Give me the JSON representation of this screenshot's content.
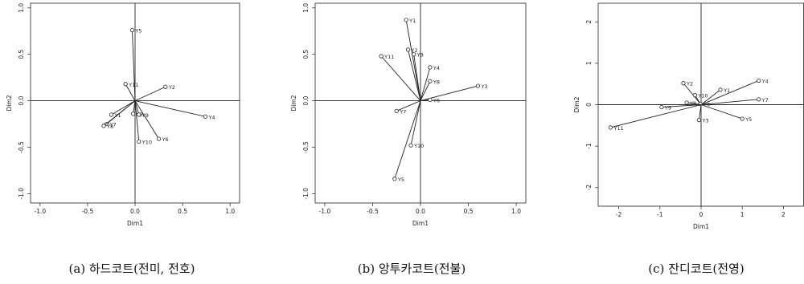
{
  "chart_data": [
    {
      "type": "scatter",
      "caption": "(a) 하드코트(전미, 전호)",
      "xlabel": "Dim1",
      "ylabel": "Dim2",
      "xlim": [
        -1.1,
        1.1
      ],
      "ylim": [
        -1.1,
        1.05
      ],
      "xticks": [
        -1.0,
        -0.5,
        0.0,
        0.5,
        1.0
      ],
      "yticks": [
        -1.0,
        -0.5,
        0.0,
        0.5,
        1.0
      ],
      "xtick_labels": [
        "-1.0",
        "-0.5",
        "0.0",
        "0.5",
        "1.0"
      ],
      "ytick_labels": [
        "-1.0",
        "-0.5",
        "0.0",
        "0.5",
        "1.0"
      ],
      "vectors": true,
      "points": [
        {
          "label": "Y5",
          "x": -0.03,
          "y": 0.76
        },
        {
          "label": "Y11",
          "x": -0.1,
          "y": 0.18
        },
        {
          "label": "Y2",
          "x": 0.32,
          "y": 0.15
        },
        {
          "label": "Y1",
          "x": -0.25,
          "y": -0.15
        },
        {
          "label": "Y3",
          "x": -0.02,
          "y": -0.14
        },
        {
          "label": "Y9",
          "x": 0.04,
          "y": -0.15
        },
        {
          "label": "Y7",
          "x": -0.3,
          "y": -0.25
        },
        {
          "label": "Y8",
          "x": -0.33,
          "y": -0.27
        },
        {
          "label": "Y10",
          "x": 0.04,
          "y": -0.44
        },
        {
          "label": "Y6",
          "x": 0.25,
          "y": -0.41
        },
        {
          "label": "Y4",
          "x": 0.74,
          "y": -0.17
        }
      ]
    },
    {
      "type": "scatter",
      "caption": "(b) 앙투카코트(전불)",
      "xlabel": "Dim1",
      "ylabel": "Dim2",
      "xlim": [
        -1.1,
        1.1
      ],
      "ylim": [
        -1.1,
        1.05
      ],
      "xticks": [
        -1.0,
        -0.5,
        0.0,
        0.5,
        1.0
      ],
      "yticks": [
        -1.0,
        -0.5,
        0.0,
        0.5,
        1.0
      ],
      "xtick_labels": [
        "-1.0",
        "-0.5",
        "0.0",
        "0.5",
        "1.0"
      ],
      "ytick_labels": [
        "-1.0",
        "-0.5",
        "0.0",
        "0.5",
        "1.0"
      ],
      "vectors": true,
      "points": [
        {
          "label": "Y1",
          "x": -0.15,
          "y": 0.87
        },
        {
          "label": "Y11",
          "x": -0.41,
          "y": 0.48
        },
        {
          "label": "Y2",
          "x": -0.13,
          "y": 0.55
        },
        {
          "label": "Y9",
          "x": -0.07,
          "y": 0.5
        },
        {
          "label": "Y4",
          "x": 0.1,
          "y": 0.36
        },
        {
          "label": "Y8",
          "x": 0.1,
          "y": 0.21
        },
        {
          "label": "Y3",
          "x": 0.6,
          "y": 0.16
        },
        {
          "label": "Y6",
          "x": 0.1,
          "y": 0.01
        },
        {
          "label": "Y7",
          "x": -0.25,
          "y": -0.11
        },
        {
          "label": "Y10",
          "x": -0.1,
          "y": -0.48
        },
        {
          "label": "Y5",
          "x": -0.27,
          "y": -0.84
        }
      ]
    },
    {
      "type": "scatter",
      "caption": "(c) 잔디코트(전영)",
      "xlabel": "Dim1",
      "ylabel": "Dim2",
      "xlim": [
        -2.5,
        2.5
      ],
      "ylim": [
        -2.45,
        2.45
      ],
      "xticks": [
        -2,
        -1,
        0,
        1,
        2
      ],
      "yticks": [
        -2,
        -1,
        0,
        1,
        2
      ],
      "xtick_labels": [
        "-2",
        "-1",
        "0",
        "1",
        "2"
      ],
      "ytick_labels": [
        "-2",
        "-1",
        "0",
        "1",
        "2"
      ],
      "vectors": true,
      "points": [
        {
          "label": "Y4",
          "x": 1.4,
          "y": 0.58
        },
        {
          "label": "Y7",
          "x": 1.4,
          "y": 0.13
        },
        {
          "label": "Y1",
          "x": 0.47,
          "y": 0.36
        },
        {
          "label": "Y2",
          "x": -0.43,
          "y": 0.52
        },
        {
          "label": "Y10",
          "x": -0.15,
          "y": 0.23
        },
        {
          "label": "Y6",
          "x": -0.02,
          "y": 0.02
        },
        {
          "label": "Y9",
          "x": -0.96,
          "y": -0.06
        },
        {
          "label": "Y8",
          "x": -0.35,
          "y": 0.05
        },
        {
          "label": "Y3",
          "x": -0.05,
          "y": -0.37
        },
        {
          "label": "Y5",
          "x": 1.0,
          "y": -0.34
        },
        {
          "label": "Y11",
          "x": -2.2,
          "y": -0.55
        }
      ]
    }
  ]
}
